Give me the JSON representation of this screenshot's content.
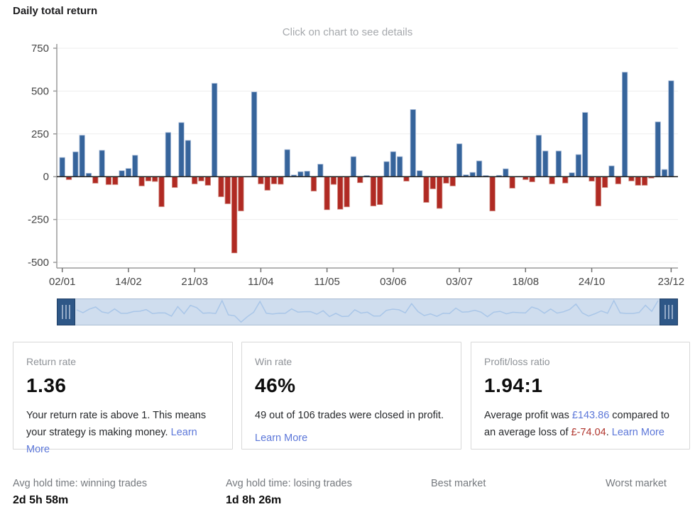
{
  "header": {
    "title": "Daily total return",
    "subtitle": "Click on chart to see details"
  },
  "colors": {
    "positive": "#36649b",
    "positive_edge": "#a9bcd9",
    "negative": "#b02a23",
    "negative_edge": "#d08a80",
    "zero_line": "#2d2d2d",
    "axis": "#9b9b9b",
    "grid": "#ededed",
    "tick_label": "#454545",
    "slider_track": "#cfddee",
    "slider_handle": "#2e5787",
    "slider_line": "#a9c6e8",
    "link": "#5c77d9",
    "loss": "#b0342c"
  },
  "chart_data": {
    "type": "bar",
    "title": "Daily total return",
    "xlabel": "",
    "ylabel": "",
    "ylim": [
      -500,
      750
    ],
    "yticks": [
      750,
      500,
      250,
      0,
      -250,
      -500
    ],
    "grid": true,
    "legend": false,
    "xtick_labels": [
      "02/01",
      "14/02",
      "21/03",
      "11/04",
      "11/05",
      "03/06",
      "03/07",
      "18/08",
      "24/10",
      "23/12"
    ],
    "xtick_indices": [
      0,
      10,
      20,
      30,
      40,
      50,
      60,
      70,
      80,
      92
    ],
    "values": [
      112,
      -17,
      145,
      242,
      20,
      -38,
      154,
      -46,
      -46,
      35,
      48,
      125,
      -54,
      -25,
      -28,
      -175,
      258,
      -63,
      316,
      212,
      -42,
      -25,
      -50,
      545,
      -117,
      -158,
      -445,
      -200,
      2,
      495,
      -42,
      -79,
      -42,
      -44,
      158,
      10,
      29,
      32,
      -84,
      73,
      -193,
      -45,
      -190,
      -176,
      117,
      -35,
      7,
      -171,
      -163,
      88,
      146,
      117,
      -26,
      392,
      35,
      -150,
      -71,
      -185,
      -38,
      -54,
      192,
      11,
      25,
      92,
      7,
      -200,
      8,
      46,
      -67,
      2,
      -17,
      -30,
      242,
      150,
      -42,
      150,
      -37,
      23,
      129,
      375,
      -26,
      -171,
      -63,
      63,
      -42,
      610,
      -25,
      -50,
      -50,
      -8,
      320,
      42,
      560
    ]
  },
  "cards": [
    {
      "label": "Return rate",
      "value": "1.36",
      "body": "Your return rate is above 1. This means your strategy is making money. ",
      "link": "Learn More"
    },
    {
      "label": "Win rate",
      "value": "46%",
      "body": "49 out of 106 trades were closed in profit.",
      "link": "Learn More"
    },
    {
      "label": "Profit/loss ratio",
      "value": "1.94:1",
      "body_pre": "Average profit was ",
      "profit": "£143.86",
      "body_mid": " compared to an average loss of ",
      "loss": "£-74.04",
      "body_end": ". ",
      "link": "Learn More"
    }
  ],
  "footer_stats": [
    {
      "label": "Avg hold time: winning trades",
      "value": "2d 5h 58m"
    },
    {
      "label": "Avg hold time: losing trades",
      "value": "1d 8h 26m"
    },
    {
      "label": "Best market",
      "value": ""
    },
    {
      "label": "Worst market",
      "value": ""
    }
  ]
}
